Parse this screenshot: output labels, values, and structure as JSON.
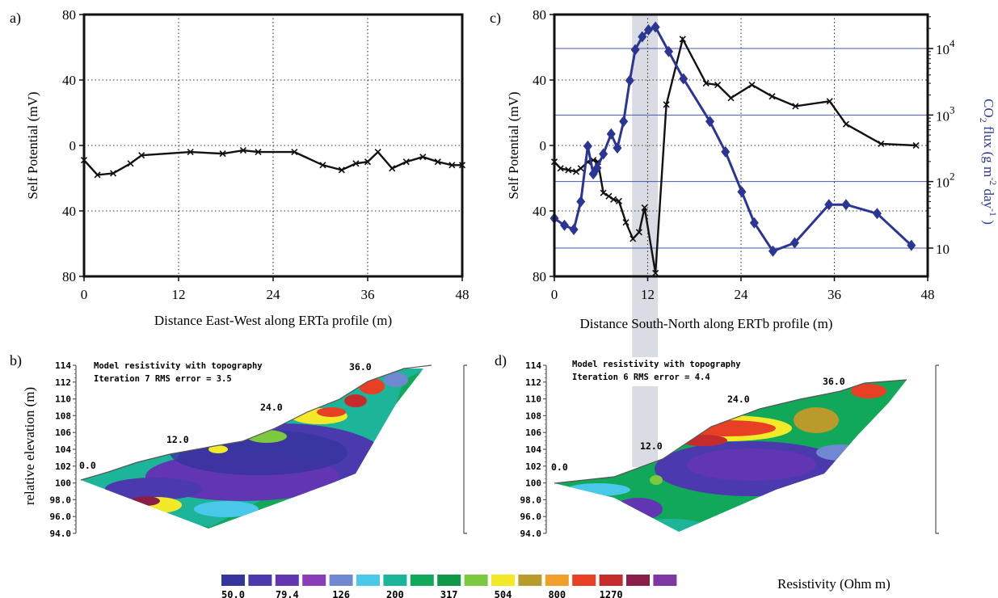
{
  "panel_labels": {
    "a": "a)",
    "b": "b)",
    "c": "c)",
    "d": "d)"
  },
  "chart_data": [
    {
      "panel": "a)",
      "type": "line",
      "xlabel": "Distance East-West along ERTa profile (m)",
      "ylabel": "Self Potential (mV)",
      "xlim": [
        0,
        48
      ],
      "ylim": [
        -80,
        80
      ],
      "xticks": [
        "0",
        "12",
        "24",
        "36",
        "48"
      ],
      "yticks": [
        {
          "value": 80,
          "label": "80"
        },
        {
          "value": 40,
          "label": "40"
        },
        {
          "value": 0,
          "label": "0"
        },
        {
          "value": -40,
          "label": "40"
        },
        {
          "value": -80,
          "label": "80"
        }
      ],
      "grid": "dotted vertical and horizontal",
      "series": [
        {
          "color": "#111111",
          "marker": "x",
          "x": [
            0,
            1.7,
            3.7,
            5.9,
            7.3,
            13.5,
            17.6,
            20.2,
            22.1,
            26.7,
            30.3,
            32.7,
            34.5,
            36.0,
            37.3,
            39.1,
            40.9,
            43.0,
            44.9,
            46.7,
            48.0
          ],
          "y": [
            -9,
            -18,
            -17,
            -11,
            -6,
            -4,
            -5,
            -3,
            -4,
            -4,
            -12,
            -15,
            -11,
            -10,
            -4,
            -14,
            -10,
            -7,
            -10,
            -12,
            -12
          ]
        }
      ]
    },
    {
      "panel": "c)",
      "type": "line",
      "xlabel": "Distance South-North along ERTb profile (m)",
      "ylabel": "Self Potential (mV)",
      "y2label": "CO2 flux (g m-2 day-1)",
      "xlim": [
        0,
        48
      ],
      "ylim": [
        -80,
        80
      ],
      "y2scale": "log",
      "y2ticks": [
        "10",
        "10²",
        "10³",
        "10⁴"
      ],
      "xticks": [
        "0",
        "12",
        "24",
        "36",
        "48"
      ],
      "yticks": [
        {
          "value": 80,
          "label": "80"
        },
        {
          "value": 40,
          "label": "40"
        },
        {
          "value": 0,
          "label": "0"
        },
        {
          "value": -40,
          "label": "40"
        },
        {
          "value": -80,
          "label": "80"
        }
      ],
      "highlight_x_range": [
        10,
        13.3
      ],
      "series": [
        {
          "color": "#111111",
          "marker": "x",
          "x": [
            0,
            0.8,
            1.8,
            2.8,
            3.4,
            4.3,
            5.0,
            5.6,
            6.3,
            7.0,
            7.6,
            8.3,
            9.2,
            10.1,
            10.9,
            11.6,
            13.0,
            14.4,
            16.5,
            19.5,
            21.0,
            22.7,
            25.4,
            28.0,
            31.0,
            35.4,
            37.5,
            42.0,
            46.5
          ],
          "y": [
            -10,
            -14,
            -15,
            -16,
            -14,
            -10,
            -9,
            -10,
            -29,
            -31,
            -33,
            -34,
            -47,
            -57,
            -53,
            -38,
            -78,
            25,
            65,
            38,
            37,
            29,
            37,
            30,
            24,
            27,
            13,
            1,
            0
          ]
        },
        {
          "color": "#2b3594",
          "marker": "diamond",
          "axis": "y2",
          "x": [
            0,
            1.3,
            2.5,
            3.4,
            4.3,
            5.0,
            5.5,
            6.3,
            7.3,
            8.1,
            8.9,
            9.7,
            10.4,
            11.3,
            12.1,
            13.0,
            14.7,
            16.6,
            20.0,
            22.0,
            24.1,
            25.7,
            28.1,
            30.9,
            35.3,
            37.5,
            41.5,
            45.9
          ],
          "y": [
            28,
            22,
            19,
            50,
            340,
            130,
            160,
            260,
            520,
            320,
            800,
            3300,
            9600,
            15000,
            19000,
            21000,
            9000,
            3500,
            800,
            280,
            70,
            24,
            9,
            12,
            45,
            45,
            33,
            11
          ]
        }
      ]
    },
    {
      "panel": "b)",
      "type": "heatmap",
      "title": "Model resistivity with topography",
      "subtitle": "Iteration 7 RMS error = 3.5",
      "ylabel": "relative elevation (m)",
      "yticks": [
        "114",
        "112",
        "110",
        "108",
        "106",
        "104",
        "102",
        "100",
        "98.0",
        "96.0",
        "94.0"
      ],
      "distance_labels": [
        "0.0",
        "12.0",
        "24.0",
        "36.0"
      ]
    },
    {
      "panel": "d)",
      "type": "heatmap",
      "title": "Model resistivity with topography",
      "subtitle": "Iteration 6 RMS error = 4.4",
      "yticks": [
        "114",
        "112",
        "110",
        "108",
        "106",
        "104",
        "102",
        "100",
        "98.0",
        "96.0",
        "94.0"
      ],
      "distance_labels": [
        "0.0",
        "12.0",
        "24.0",
        "36.0"
      ]
    }
  ],
  "colorbar": {
    "title": "Resistivity (Ohm m)",
    "labels": [
      "50.0",
      "79.4",
      "126",
      "200",
      "317",
      "504",
      "800",
      "1270"
    ],
    "colors": [
      "#35359e",
      "#4a3aae",
      "#6236b2",
      "#8a3db8",
      "#7088d0",
      "#49c8ea",
      "#1db59a",
      "#11a85a",
      "#0e9848",
      "#7cc83e",
      "#f2ea28",
      "#b89b2b",
      "#f0a028",
      "#e84025",
      "#c52b2d",
      "#8a1e48",
      "#7d38a4"
    ]
  }
}
